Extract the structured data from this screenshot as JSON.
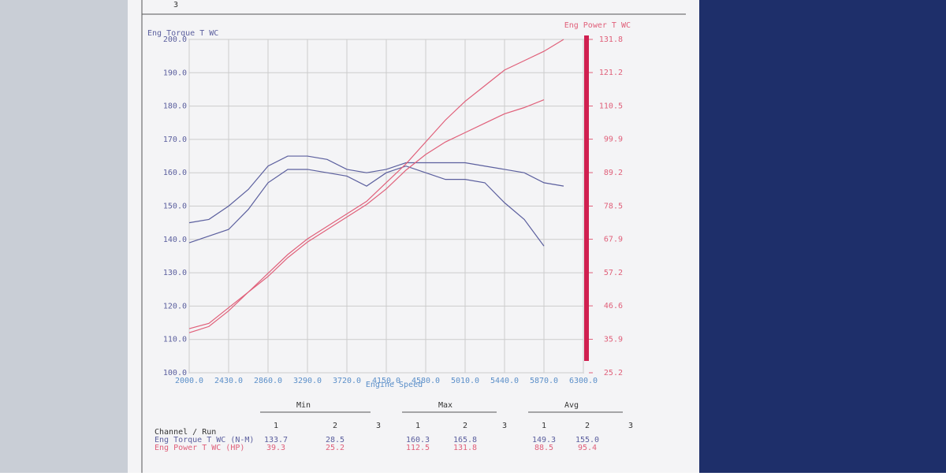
{
  "page_number": "3",
  "chart_data": {
    "type": "line",
    "y_label": "Eng Torque T WC",
    "y2_label": "Eng Power T WC",
    "x_label": "Engine Speed",
    "x": [
      2000,
      2215,
      2430,
      2645,
      2860,
      3075,
      3290,
      3505,
      3720,
      3935,
      4150,
      4365,
      4580,
      4795,
      5010,
      5225,
      5440,
      5655,
      5870,
      6085,
      6300
    ],
    "xlim": [
      2000,
      6300
    ],
    "xticks": [
      {
        "value": 2000,
        "label": "2000.0"
      },
      {
        "value": 2430,
        "label": "2430.0"
      },
      {
        "value": 2860,
        "label": "2860.0"
      },
      {
        "value": 3290,
        "label": "3290.0"
      },
      {
        "value": 3720,
        "label": "3720.0"
      },
      {
        "value": 4150,
        "label": "4150.0"
      },
      {
        "value": 4580,
        "label": "4580.0"
      },
      {
        "value": 5010,
        "label": "5010.0"
      },
      {
        "value": 5440,
        "label": "5440.0"
      },
      {
        "value": 5870,
        "label": "5870.0"
      },
      {
        "value": 6300,
        "label": "6300.0"
      }
    ],
    "ylim": [
      100,
      200
    ],
    "yticks": [
      {
        "value": 100,
        "label": "100.0"
      },
      {
        "value": 110,
        "label": "110.0"
      },
      {
        "value": 120,
        "label": "120.0"
      },
      {
        "value": 130,
        "label": "130.0"
      },
      {
        "value": 140,
        "label": "140.0"
      },
      {
        "value": 150,
        "label": "150.0"
      },
      {
        "value": 160,
        "label": "160.0"
      },
      {
        "value": 170,
        "label": "170.0"
      },
      {
        "value": 180,
        "label": "180.0"
      },
      {
        "value": 190,
        "label": "190.0"
      },
      {
        "value": 200,
        "label": "200.0"
      }
    ],
    "y2lim": [
      25.2,
      131.8
    ],
    "y2ticks": [
      25.2,
      35.9,
      46.6,
      57.2,
      67.9,
      78.5,
      89.2,
      99.9,
      110.5,
      121.2,
      131.8
    ],
    "grid": true,
    "series": [
      {
        "color": "#5b5f9e",
        "values": [
          139,
          141,
          143,
          149,
          157,
          161,
          161,
          160,
          159,
          156,
          160,
          162,
          160,
          158,
          158,
          157,
          151,
          146,
          138,
          null,
          null
        ]
      },
      {
        "color": "#5b5f9e",
        "values": [
          145,
          146,
          150,
          155,
          162,
          165,
          165,
          164,
          161,
          160,
          161,
          163,
          163,
          163,
          163,
          162,
          161,
          160,
          157,
          156,
          null
        ]
      },
      {
        "color": "#e0607a",
        "axis": "y2",
        "values": [
          39.3,
          41,
          46,
          51,
          56,
          62,
          67,
          71,
          75,
          79,
          84,
          90,
          95,
          99,
          102,
          105,
          108,
          110,
          112.5,
          null,
          null
        ]
      },
      {
        "color": "#e0607a",
        "axis": "y2",
        "values": [
          38,
          40,
          45,
          51,
          57,
          63,
          68,
          72,
          76,
          80,
          86,
          92,
          99,
          106,
          112,
          117,
          122,
          125,
          128,
          131.8,
          null
        ]
      }
    ]
  },
  "table": {
    "row_header": "Channel / Run",
    "groups": [
      {
        "title": "Min",
        "runs": [
          "1",
          "2",
          "3"
        ]
      },
      {
        "title": "Max",
        "runs": [
          "1",
          "2",
          "3"
        ]
      },
      {
        "title": "Avg",
        "runs": [
          "1",
          "2",
          "3"
        ]
      }
    ],
    "rows": [
      {
        "label": "Eng Torque T WC (N-M)",
        "cells": [
          "133.7",
          "28.5",
          "160.3",
          "165.8",
          "149.3",
          "155.0"
        ]
      },
      {
        "label": "Eng Power T WC (HP)",
        "cells": [
          "39.3",
          "25.2",
          "112.5",
          "131.8",
          "88.5",
          "95.4"
        ]
      }
    ]
  }
}
